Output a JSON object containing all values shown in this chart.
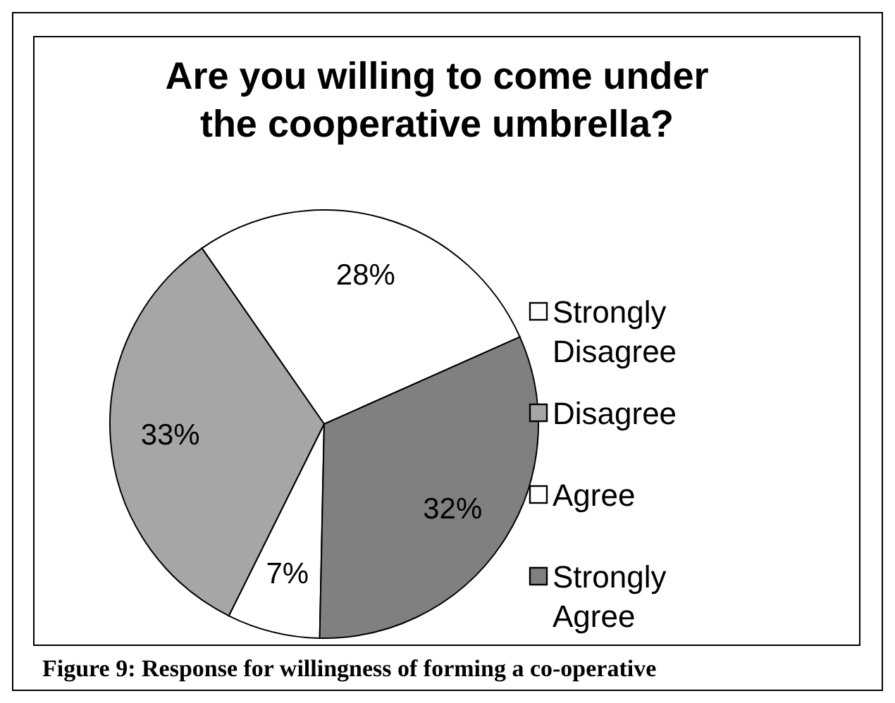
{
  "chart_data": {
    "type": "pie",
    "title": "Are you willing to come under the cooperative umbrella?",
    "categories": [
      "Strongly Disagree",
      "Disagree",
      "Agree",
      "Strongly Agree"
    ],
    "values": [
      28,
      33,
      7,
      32
    ],
    "colors": [
      "#ffffff",
      "#a6a6a6",
      "#ffffff",
      "#808080"
    ],
    "value_labels": [
      "28%",
      "33%",
      "7%",
      "32%"
    ],
    "legend": "right",
    "annotations": [
      "Figure 9: Response for willingness of forming a co-operative"
    ]
  }
}
